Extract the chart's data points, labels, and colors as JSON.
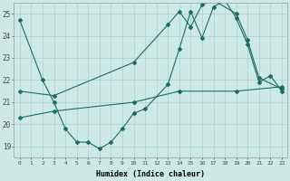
{
  "background_color": "#cce9e5",
  "grid_color": "#add0cc",
  "line_color": "#1e6b63",
  "xlabel": "Humidex (Indice chaleur)",
  "xlim": [
    -0.5,
    23.5
  ],
  "ylim": [
    18.5,
    25.5
  ],
  "yticks": [
    19,
    20,
    21,
    22,
    23,
    24,
    25
  ],
  "xticks": [
    0,
    1,
    2,
    3,
    4,
    5,
    6,
    7,
    8,
    9,
    10,
    11,
    12,
    13,
    14,
    15,
    16,
    17,
    18,
    19,
    20,
    21,
    22,
    23
  ],
  "line1_x": [
    0,
    2,
    3,
    4,
    5,
    6,
    7,
    8,
    9,
    10,
    11,
    13,
    14,
    15,
    16,
    17,
    18,
    19,
    20,
    21,
    22,
    23
  ],
  "line1_y": [
    24.7,
    22.0,
    21.0,
    19.8,
    19.2,
    19.2,
    18.9,
    19.2,
    19.8,
    20.5,
    20.7,
    21.8,
    23.4,
    25.1,
    23.9,
    25.3,
    25.6,
    24.8,
    23.6,
    21.9,
    22.2,
    21.5
  ],
  "line2_x": [
    0,
    3,
    10,
    13,
    14,
    15,
    16,
    17,
    19,
    20,
    21,
    23
  ],
  "line2_y": [
    21.5,
    21.3,
    22.8,
    24.5,
    25.1,
    24.4,
    25.4,
    25.6,
    25.0,
    23.8,
    22.1,
    21.6
  ],
  "line3_x": [
    0,
    3,
    10,
    14,
    19,
    23
  ],
  "line3_y": [
    20.3,
    20.6,
    21.0,
    21.5,
    21.5,
    21.7
  ]
}
